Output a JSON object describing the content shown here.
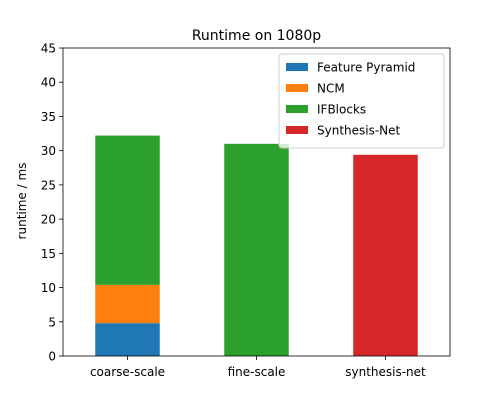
{
  "chart_data": {
    "type": "bar",
    "stacked": true,
    "title": "Runtime on 1080p",
    "xlabel": "",
    "ylabel": "runtime / ms",
    "ylim": [
      0,
      45
    ],
    "yticks": [
      0,
      5,
      10,
      15,
      20,
      25,
      30,
      35,
      40,
      45
    ],
    "grid": false,
    "legend_position": "top-right",
    "categories": [
      "coarse-scale",
      "fine-scale",
      "synthesis-net"
    ],
    "series": [
      {
        "name": "Feature Pyramid",
        "color": "#1f77b4",
        "values": [
          4.8,
          0,
          0
        ]
      },
      {
        "name": "NCM",
        "color": "#ff7f0e",
        "values": [
          5.6,
          0,
          0
        ]
      },
      {
        "name": "IFBlocks",
        "color": "#2ca02c",
        "values": [
          21.8,
          31.0,
          0
        ]
      },
      {
        "name": "Synthesis-Net",
        "color": "#d62728",
        "values": [
          0,
          0,
          29.4
        ]
      }
    ]
  }
}
